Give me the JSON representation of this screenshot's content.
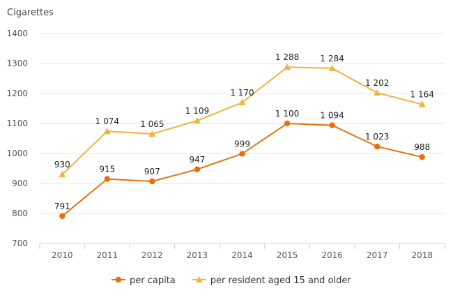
{
  "chart_data": {
    "type": "line",
    "ylabel": "Cigarettes",
    "ylim": [
      700,
      1400
    ],
    "yticks": [
      "700",
      "800",
      "900",
      "1000",
      "1100",
      "1200",
      "1300",
      "1400"
    ],
    "categories": [
      "2010",
      "2011",
      "2012",
      "2013",
      "2014",
      "2015",
      "2016",
      "2017",
      "2018"
    ],
    "grid": true,
    "legend_position": "bottom",
    "series": [
      {
        "name": "per capita",
        "marker": "circle",
        "color": "#E8700C",
        "values": [
          791,
          915,
          907,
          947,
          999,
          1100,
          1094,
          1023,
          988
        ],
        "labels": [
          "791",
          "915",
          "907",
          "947",
          "999",
          "1 100",
          "1 094",
          "1 023",
          "988"
        ]
      },
      {
        "name": "per resident aged 15 and older",
        "marker": "triangle",
        "color": "#F2B33D",
        "values": [
          930,
          1074,
          1065,
          1109,
          1170,
          1288,
          1284,
          1202,
          1164
        ],
        "labels": [
          "930",
          "1 074",
          "1 065",
          "1 109",
          "1 170",
          "1 288",
          "1 284",
          "1 202",
          "1 164"
        ]
      }
    ]
  }
}
